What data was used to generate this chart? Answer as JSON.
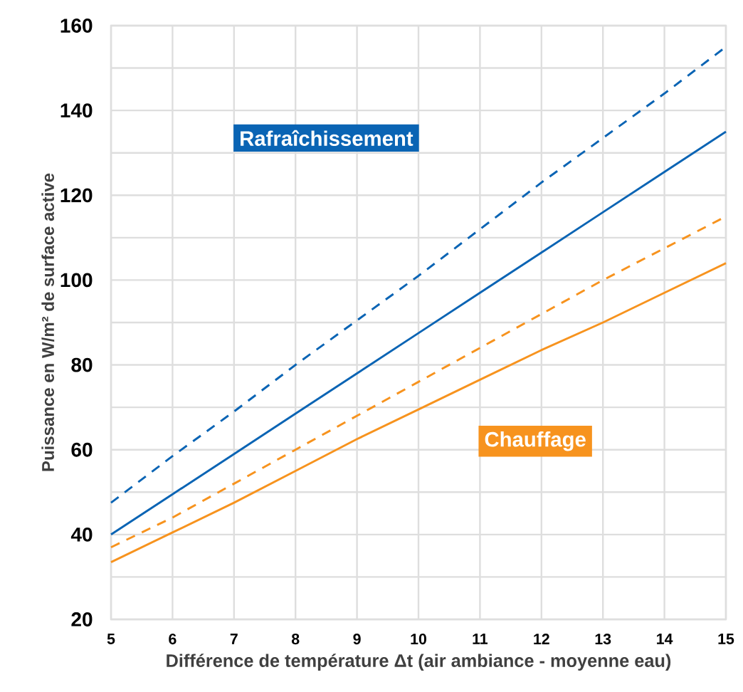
{
  "chart_data": {
    "type": "line",
    "xlabel": "Différence de température Δt (air ambiance - moyenne eau)",
    "ylabel": "Puissance en W/m² de surface active",
    "x": [
      5,
      6,
      7,
      8,
      9,
      10,
      11,
      12,
      13,
      14,
      15
    ],
    "series": [
      {
        "color": "#0a64b4",
        "line_style": "dashed",
        "values": [
          47.5,
          58.5,
          69,
          80,
          90.5,
          101,
          112,
          123,
          133.5,
          144,
          155
        ]
      },
      {
        "name": "Rafraîchissement",
        "color": "#0a64b4",
        "line_style": "solid",
        "values": [
          40,
          49.5,
          59,
          68.5,
          78,
          87.5,
          97,
          106.5,
          116,
          125.5,
          135
        ]
      },
      {
        "color": "#f7931e",
        "line_style": "dashed",
        "values": [
          37,
          44,
          52,
          60,
          68,
          76,
          84,
          92,
          100,
          107.5,
          115
        ]
      },
      {
        "name": "Chauffage",
        "color": "#f7931e",
        "line_style": "solid",
        "values": [
          33.5,
          40.5,
          47.5,
          55,
          62.5,
          69.5,
          76.5,
          83.5,
          90,
          97,
          104
        ]
      }
    ],
    "xlim": [
      5,
      15
    ],
    "ylim": [
      20,
      160
    ],
    "xticks": [
      5,
      6,
      7,
      8,
      9,
      10,
      11,
      12,
      13,
      14,
      15
    ],
    "yticks": [
      20,
      {
        "value": 30,
        "label": null
      },
      40,
      {
        "value": 50,
        "label": null
      },
      60,
      {
        "value": 70,
        "label": null
      },
      80,
      {
        "value": 90,
        "label": null
      },
      100,
      {
        "value": 110,
        "label": null
      },
      120,
      {
        "value": 130,
        "label": null
      },
      140,
      {
        "value": 150,
        "label": null
      },
      160
    ],
    "grid": true,
    "marker": "none"
  }
}
